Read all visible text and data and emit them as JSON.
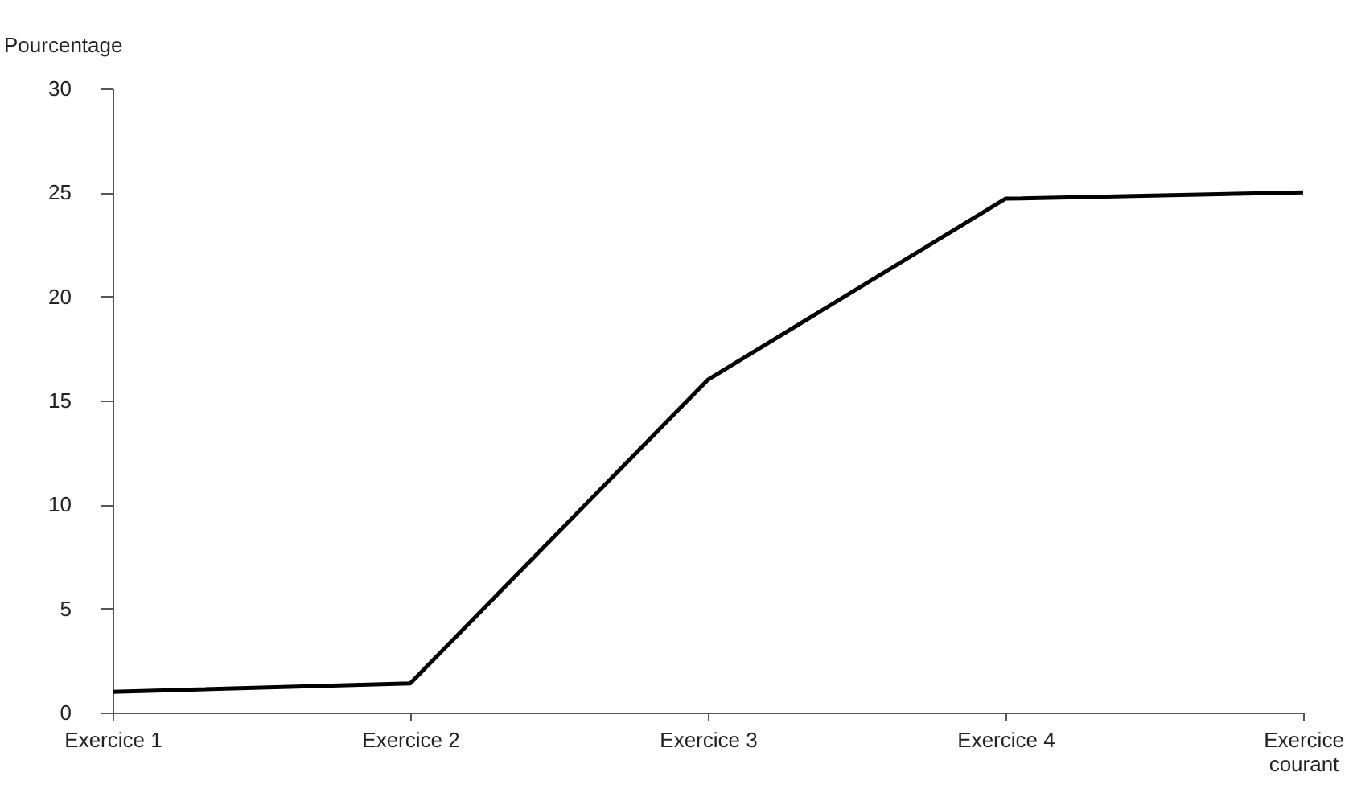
{
  "chart_data": {
    "type": "line",
    "ylabel": "Pourcentage",
    "categories": [
      "Exercice 1",
      "Exercice 2",
      "Exercice 3",
      "Exercice 4",
      "Exercice courant"
    ],
    "series": [
      {
        "color": "#000000",
        "values": [
          1.0,
          1.4,
          16,
          24.7,
          25.0
        ]
      }
    ],
    "ylim": [
      0,
      30
    ],
    "yticks": [
      0,
      5,
      10,
      15,
      20,
      25,
      30
    ],
    "grid": false,
    "legend": false,
    "marker": "none",
    "line_style": "solid"
  }
}
